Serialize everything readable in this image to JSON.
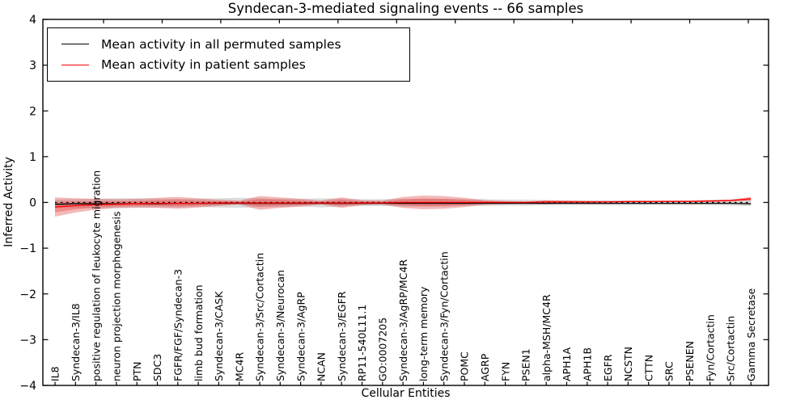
{
  "chart_data": {
    "type": "line",
    "title": "Syndecan-3-mediated signaling events -- 66 samples",
    "xlabel": "Cellular Entities",
    "ylabel": "Inferred Activity",
    "ylim": [
      -4,
      4
    ],
    "ytick_values": [
      4,
      3,
      2,
      1,
      0,
      -1,
      -2,
      -3,
      -4
    ],
    "ytick_labels": [
      "4",
      "3",
      "2",
      "1",
      "0",
      "−1",
      "−2",
      "−3",
      "−4"
    ],
    "grid": false,
    "legend_position": "upper left",
    "zero_line": {
      "style": "dashed",
      "color": "#000000",
      "value": 0
    },
    "categories": [
      "IL8",
      "Syndecan-3/IL8",
      "positive regulation of leukocyte migration",
      "neuron projection morphogenesis",
      "PTN",
      "SDC3",
      "FGFR/FGF/Syndecan-3",
      "limb bud formation",
      "Syndecan-3/CASK",
      "MC4R",
      "Syndecan-3/Src/Cortactin",
      "Syndecan-3/Neurocan",
      "Syndecan-3/AgRP",
      "NCAN",
      "Syndecan-3/EGFR",
      "RP11-540L11.1",
      "GO:0007205",
      "Syndecan-3/AgRP/MC4R",
      "long-term memory",
      "Syndecan-3/Fyn/Cortactin",
      "POMC",
      "AGRP",
      "FYN",
      "PSEN1",
      "alpha-MSH/MC4R",
      "APH1A",
      "APH1B",
      "EGFR",
      "NCSTN",
      "CTTN",
      "SRC",
      "PSENEN",
      "Fyn/Cortactin",
      "Src/Cortactin",
      "Gamma Secretase"
    ],
    "series": [
      {
        "name": "Mean activity in all permuted samples",
        "color": "#000000",
        "values": [
          -0.04,
          -0.03,
          -0.03,
          -0.03,
          -0.03,
          -0.03,
          -0.02,
          -0.02,
          -0.02,
          -0.02,
          -0.02,
          -0.02,
          -0.02,
          -0.02,
          -0.02,
          -0.02,
          -0.02,
          -0.02,
          -0.02,
          -0.02,
          -0.02,
          -0.02,
          -0.02,
          -0.02,
          -0.02,
          -0.02,
          -0.02,
          -0.02,
          -0.02,
          -0.02,
          -0.02,
          -0.02,
          -0.02,
          -0.02,
          -0.03
        ]
      },
      {
        "name": "Mean activity in patient samples",
        "color": "#ff0000",
        "values": [
          -0.1,
          -0.07,
          -0.05,
          -0.04,
          -0.03,
          -0.02,
          -0.02,
          -0.02,
          -0.01,
          -0.01,
          -0.01,
          -0.01,
          -0.01,
          -0.01,
          -0.01,
          -0.01,
          -0.01,
          0.0,
          0.0,
          0.0,
          0.0,
          0.0,
          0.0,
          0.0,
          0.01,
          0.01,
          0.01,
          0.01,
          0.02,
          0.02,
          0.02,
          0.02,
          0.03,
          0.04,
          0.08
        ]
      }
    ],
    "bands": [
      {
        "name": "permuted-samples-range",
        "color": "#bfbfbf",
        "opacity": 0.55,
        "upper": [
          0.06,
          0.07,
          0.08,
          0.09,
          0.09,
          0.08,
          0.08,
          0.08,
          0.09,
          0.1,
          0.09,
          0.08,
          0.08,
          0.09,
          0.08,
          0.07,
          0.07,
          0.08,
          0.08,
          0.08,
          0.07,
          0.07,
          0.06,
          0.06,
          0.05,
          0.05,
          0.05,
          0.05,
          0.05,
          0.05,
          0.05,
          0.05,
          0.06,
          0.06,
          0.08
        ],
        "lower": [
          -0.11,
          -0.12,
          -0.13,
          -0.13,
          -0.12,
          -0.11,
          -0.11,
          -0.1,
          -0.11,
          -0.12,
          -0.1,
          -0.1,
          -0.09,
          -0.11,
          -0.09,
          -0.08,
          -0.08,
          -0.09,
          -0.09,
          -0.09,
          -0.08,
          -0.08,
          -0.07,
          -0.07,
          -0.06,
          -0.06,
          -0.06,
          -0.06,
          -0.06,
          -0.06,
          -0.06,
          -0.06,
          -0.06,
          -0.07,
          -0.08
        ]
      },
      {
        "name": "patient-samples-range",
        "color": "#e64545",
        "opacity": 0.38,
        "inner_band_ratio": 0.55,
        "upper": [
          0.11,
          0.09,
          0.08,
          0.07,
          0.08,
          0.1,
          0.12,
          0.09,
          0.06,
          0.04,
          0.14,
          0.11,
          0.08,
          0.04,
          0.11,
          0.05,
          0.04,
          0.12,
          0.15,
          0.14,
          0.1,
          0.05,
          0.03,
          0.02,
          0.05,
          0.04,
          0.03,
          0.03,
          0.03,
          0.03,
          0.04,
          0.04,
          0.05,
          0.06,
          0.12
        ],
        "lower": [
          -0.31,
          -0.22,
          -0.16,
          -0.12,
          -0.11,
          -0.12,
          -0.14,
          -0.11,
          -0.08,
          -0.05,
          -0.16,
          -0.12,
          -0.09,
          -0.05,
          -0.12,
          -0.06,
          -0.05,
          -0.12,
          -0.15,
          -0.14,
          -0.1,
          -0.05,
          -0.04,
          -0.03,
          -0.04,
          -0.02,
          -0.01,
          0.0,
          0.0,
          0.0,
          0.01,
          0.01,
          0.01,
          0.02,
          0.03
        ]
      }
    ],
    "top_axis_minor_ticks": 12
  }
}
